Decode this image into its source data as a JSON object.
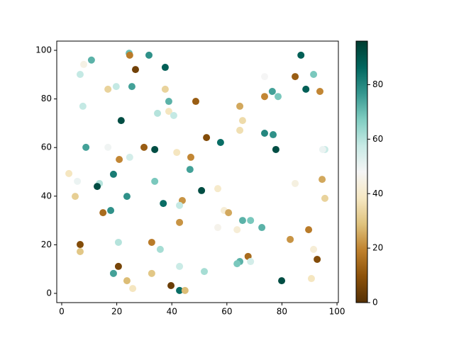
{
  "chart_data": {
    "type": "scatter",
    "x": [
      24.5,
      24.7,
      31.7,
      86.9,
      10.8,
      8.0,
      26.8,
      37.6,
      6.7,
      73.7,
      84.8,
      91.5,
      25.5,
      16.8,
      19.8,
      37.6,
      76.5,
      88.7,
      93.8,
      73.7,
      78.6,
      38.9,
      48.7,
      7.7,
      64.7,
      34.8,
      38.9,
      40.7,
      21.6,
      65.7,
      64.7,
      73.7,
      76.8,
      52.6,
      57.7,
      8.8,
      16.8,
      29.9,
      33.8,
      77.8,
      41.8,
      95.6,
      94.8,
      24.7,
      46.9,
      20.9,
      46.6,
      2.6,
      18.8,
      5.7,
      33.8,
      84.8,
      94.6,
      13.7,
      12.9,
      56.7,
      50.8,
      4.9,
      23.7,
      95.6,
      36.9,
      43.8,
      42.8,
      59.0,
      60.6,
      15.0,
      17.8,
      65.7,
      68.6,
      56.7,
      63.7,
      72.7,
      89.7,
      42.8,
      83.0,
      20.6,
      32.7,
      6.7,
      6.7,
      35.8,
      91.5,
      67.7,
      92.8,
      68.6,
      64.7,
      63.7,
      42.8,
      20.6,
      51.8,
      18.8,
      32.7,
      90.7,
      23.7,
      79.9,
      39.7,
      25.8,
      42.8,
      44.8
    ],
    "y": [
      98.8,
      98.0,
      98.0,
      98.0,
      96.0,
      94.2,
      92.1,
      93.0,
      90.1,
      89.2,
      89.2,
      90.1,
      85.1,
      84.0,
      85.1,
      84.0,
      83.1,
      84.0,
      83.1,
      81.0,
      81.0,
      79.0,
      79.0,
      77.0,
      77.0,
      74.1,
      74.9,
      73.2,
      71.1,
      71.1,
      67.1,
      65.9,
      65.3,
      64.1,
      62.1,
      60.1,
      60.1,
      60.1,
      59.2,
      59.2,
      58.0,
      59.2,
      59.2,
      56.0,
      56.0,
      55.1,
      51.0,
      49.3,
      49.0,
      46.1,
      46.1,
      45.2,
      46.9,
      45.2,
      44.0,
      43.1,
      42.3,
      39.9,
      39.9,
      39.1,
      37.0,
      38.2,
      36.2,
      34.1,
      33.2,
      33.2,
      34.1,
      30.0,
      30.0,
      27.1,
      26.2,
      27.1,
      26.2,
      29.2,
      22.2,
      21.0,
      21.0,
      20.1,
      17.2,
      18.1,
      18.1,
      15.2,
      14.0,
      13.1,
      13.1,
      12.2,
      11.1,
      11.1,
      9.0,
      8.2,
      8.2,
      6.1,
      5.2,
      5.2,
      3.2,
      2.0,
      1.2,
      1.2
    ],
    "c": [
      70,
      18,
      78,
      88,
      72,
      45,
      5,
      88,
      58,
      48,
      12,
      68,
      75,
      33,
      58,
      33,
      75,
      88,
      20,
      20,
      68,
      72,
      12,
      58,
      25,
      60,
      38,
      58,
      92,
      35,
      36,
      80,
      78,
      8,
      85,
      75,
      49,
      12,
      92,
      92,
      38,
      57,
      50,
      55,
      20,
      20,
      75,
      38,
      82,
      50,
      68,
      44,
      25,
      60,
      92,
      40,
      92,
      32,
      78,
      33,
      85,
      22,
      58,
      42,
      25,
      15,
      78,
      72,
      68,
      46,
      42,
      72,
      18,
      22,
      22,
      60,
      18,
      8,
      30,
      62,
      42,
      15,
      8,
      55,
      72,
      68,
      57,
      6,
      62,
      75,
      30,
      38,
      28,
      92,
      4,
      38,
      85,
      28
    ],
    "colormap": "BrBG",
    "clim": [
      0,
      96
    ],
    "cticks": [
      0,
      20,
      40,
      60,
      80
    ],
    "xlim": [
      -1.8,
      100.5
    ],
    "xticks": [
      0,
      20,
      40,
      60,
      80,
      100
    ],
    "ylim": [
      -3.8,
      103.8
    ],
    "yticks": [
      0,
      20,
      40,
      60,
      80,
      100
    ]
  }
}
